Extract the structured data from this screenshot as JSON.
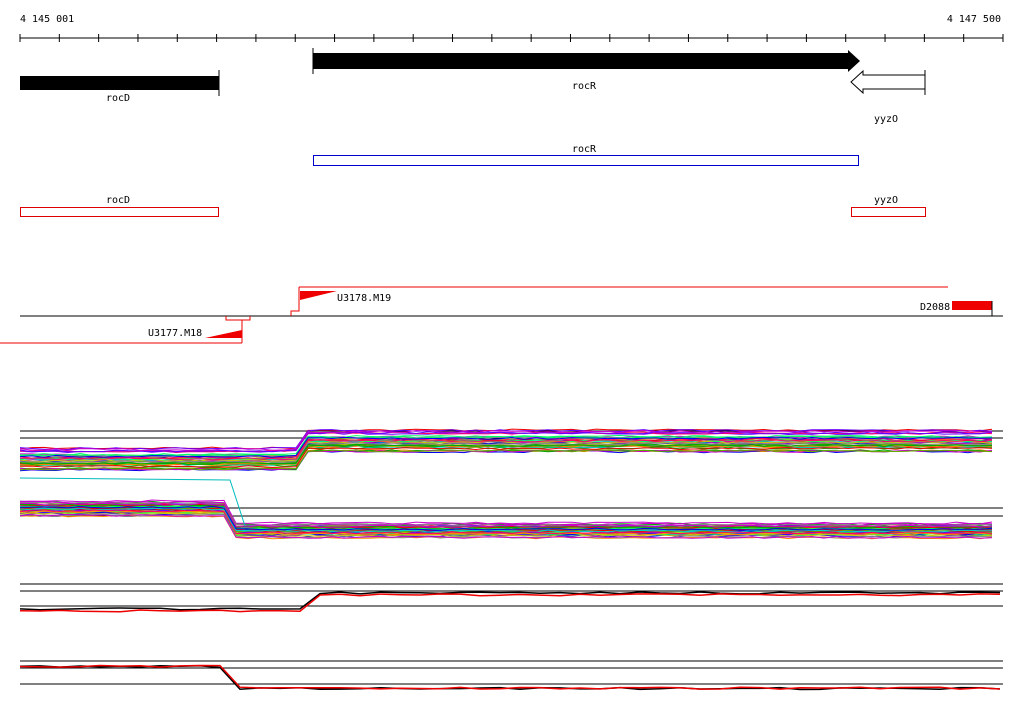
{
  "ruler": {
    "start": "4 145 001",
    "end": "4 147 500"
  },
  "genes": [
    {
      "label": "rocD"
    },
    {
      "label": "rocR"
    },
    {
      "label": "yyzO"
    }
  ],
  "annotations": [
    {
      "label": "rocR"
    },
    {
      "label": "rocD"
    },
    {
      "label": "yyzO"
    }
  ],
  "features": [
    {
      "label": "U3178.M19"
    },
    {
      "label": "D2088"
    },
    {
      "label": "U3177.M18"
    }
  ]
}
